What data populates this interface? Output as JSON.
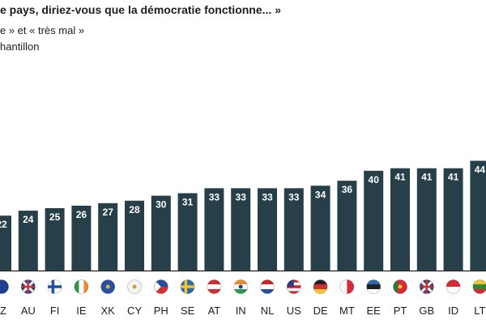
{
  "header": {
    "title": "e pays, diriez-vous que la démocratie fonctionne... »",
    "subtitle1": "e » et « très mal »",
    "subtitle2": "hantillon"
  },
  "colors": {
    "bar": "#263f49",
    "axis": "#222222",
    "label_text": "#ffffff"
  },
  "chart_data": {
    "type": "bar",
    "categories": [
      "Z",
      "AU",
      "FI",
      "IE",
      "XK",
      "CY",
      "PH",
      "SE",
      "AT",
      "IN",
      "NL",
      "US",
      "DE",
      "MT",
      "EE",
      "PT",
      "GB",
      "ID",
      "LT"
    ],
    "values": [
      22,
      24,
      25,
      26,
      27,
      28,
      30,
      31,
      33,
      33,
      33,
      33,
      34,
      36,
      40,
      41,
      41,
      41,
      44
    ],
    "data_labels": [
      "22",
      "24",
      "25",
      "26",
      "27",
      "28",
      "30",
      "31",
      "33",
      "33",
      "33",
      "33",
      "34",
      "36",
      "40",
      "41",
      "41",
      "41",
      "44"
    ],
    "flags": [
      "flag-icon",
      "au-flag-icon",
      "fi-flag-icon",
      "ie-flag-icon",
      "xk-flag-icon",
      "cy-flag-icon",
      "ph-flag-icon",
      "se-flag-icon",
      "at-flag-icon",
      "in-flag-icon",
      "nl-flag-icon",
      "us-flag-icon",
      "de-flag-icon",
      "mt-flag-icon",
      "ee-flag-icon",
      "pt-flag-icon",
      "gb-flag-icon",
      "id-flag-icon",
      "lt-flag-icon"
    ],
    "ylim": [
      0,
      44
    ],
    "grid": false,
    "legend": "none"
  }
}
